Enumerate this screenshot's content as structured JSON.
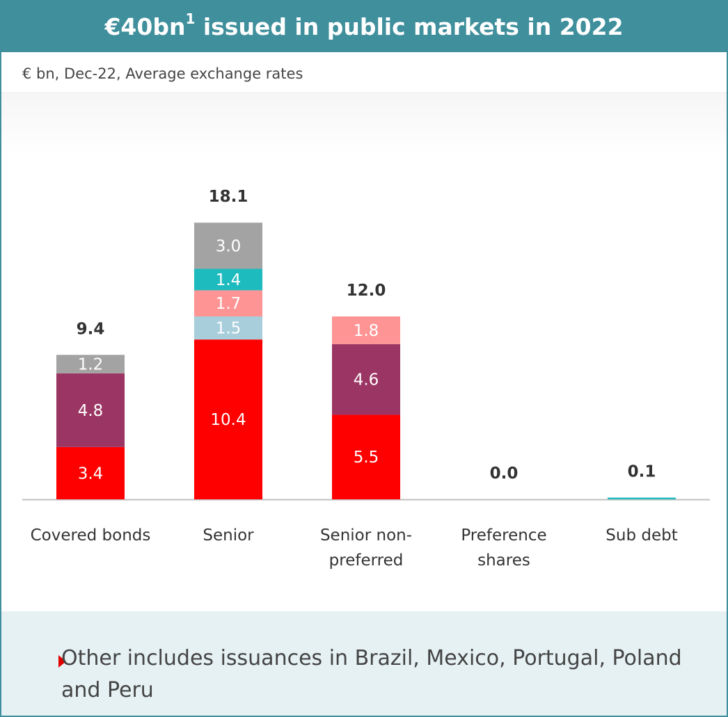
{
  "header": {
    "title_main": "€40bn",
    "title_sup": "1",
    "title_rest": " issued in public markets in 2022"
  },
  "subtitle": "€ bn, Dec-22, Average exchange rates",
  "colors": {
    "header": "#3f8f9c",
    "red": "#ff0000",
    "purple": "#9b3563",
    "lightblue": "#a8cedc",
    "pink": "#fe9594",
    "teal": "#1ebbbe",
    "gray": "#a3a3a3",
    "note_bg": "#e6f1f4",
    "axis": "#bfbfbf"
  },
  "chart_data": {
    "type": "bar",
    "stacked": true,
    "categories": [
      "Covered bonds",
      "Senior",
      "Senior non-\npreferred",
      "Preference\nshares",
      "Sub debt"
    ],
    "category_lines": [
      [
        "Covered bonds"
      ],
      [
        "Senior"
      ],
      [
        "Senior non-",
        "preferred"
      ],
      [
        "Preference",
        "shares"
      ],
      [
        "Sub debt"
      ]
    ],
    "totals": [
      "9.4",
      "18.1",
      "12.0",
      "0.0",
      "0.1"
    ],
    "stacks": [
      [
        {
          "value": 3.4,
          "label": "3.4",
          "color": "#ff0000"
        },
        {
          "value": 4.8,
          "label": "4.8",
          "color": "#9b3563"
        },
        {
          "value": 1.2,
          "label": "1.2",
          "color": "#a3a3a3"
        }
      ],
      [
        {
          "value": 10.4,
          "label": "10.4",
          "color": "#ff0000"
        },
        {
          "value": 1.5,
          "label": "1.5",
          "color": "#a8cedc"
        },
        {
          "value": 1.7,
          "label": "1.7",
          "color": "#fe9594"
        },
        {
          "value": 1.4,
          "label": "1.4",
          "color": "#1ebbbe"
        },
        {
          "value": 3.0,
          "label": "3.0",
          "color": "#a3a3a3"
        }
      ],
      [
        {
          "value": 5.5,
          "label": "5.5",
          "color": "#ff0000"
        },
        {
          "value": 4.6,
          "label": "4.6",
          "color": "#9b3563"
        },
        {
          "value": 1.8,
          "label": "1.8",
          "color": "#fe9594"
        }
      ],
      [],
      [
        {
          "value": 0.1,
          "label": "",
          "color": "#1ebbbe"
        }
      ]
    ],
    "ylim": [
      0,
      18.1
    ],
    "grid": false,
    "legend": "none"
  },
  "note": {
    "text": "Other includes issuances in Brazil, Mexico, Portugal, Poland and Peru"
  }
}
